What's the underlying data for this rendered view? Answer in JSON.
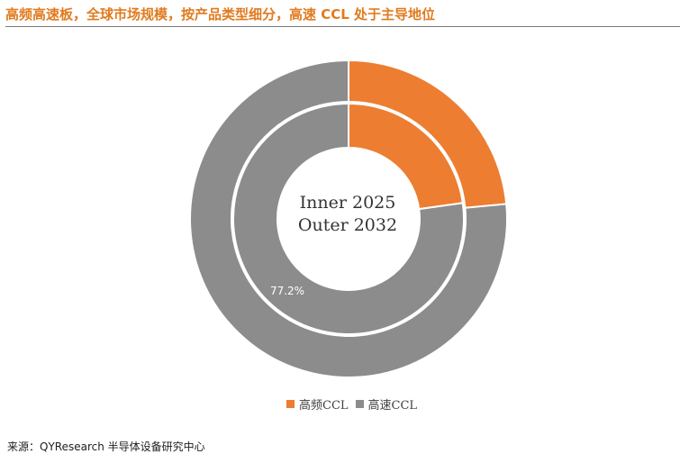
{
  "title": "高频高速板，全球市场规模，按产品类型细分，高速 CCL 处于主导地位",
  "source": "来源：QYResearch 半导体设备研究中心",
  "center_text": [
    "Inner 2025",
    "Outer 2032"
  ],
  "chart_data": {
    "type": "pie",
    "subtype": "double-donut",
    "categories": [
      "高频CCL",
      "高速CCL"
    ],
    "colors": [
      "#ED7D31",
      "#8C8C8C"
    ],
    "rings": [
      {
        "name": "Inner 2025",
        "values": [
          22.8,
          77.2
        ],
        "data_labels": [
          "",
          "77.2%"
        ]
      },
      {
        "name": "Outer 2032",
        "values": [
          23.5,
          76.5
        ],
        "data_labels": [
          "",
          ""
        ]
      }
    ],
    "legend": {
      "position": "bottom",
      "entries": [
        "高频CCL",
        "高速CCL"
      ]
    }
  }
}
